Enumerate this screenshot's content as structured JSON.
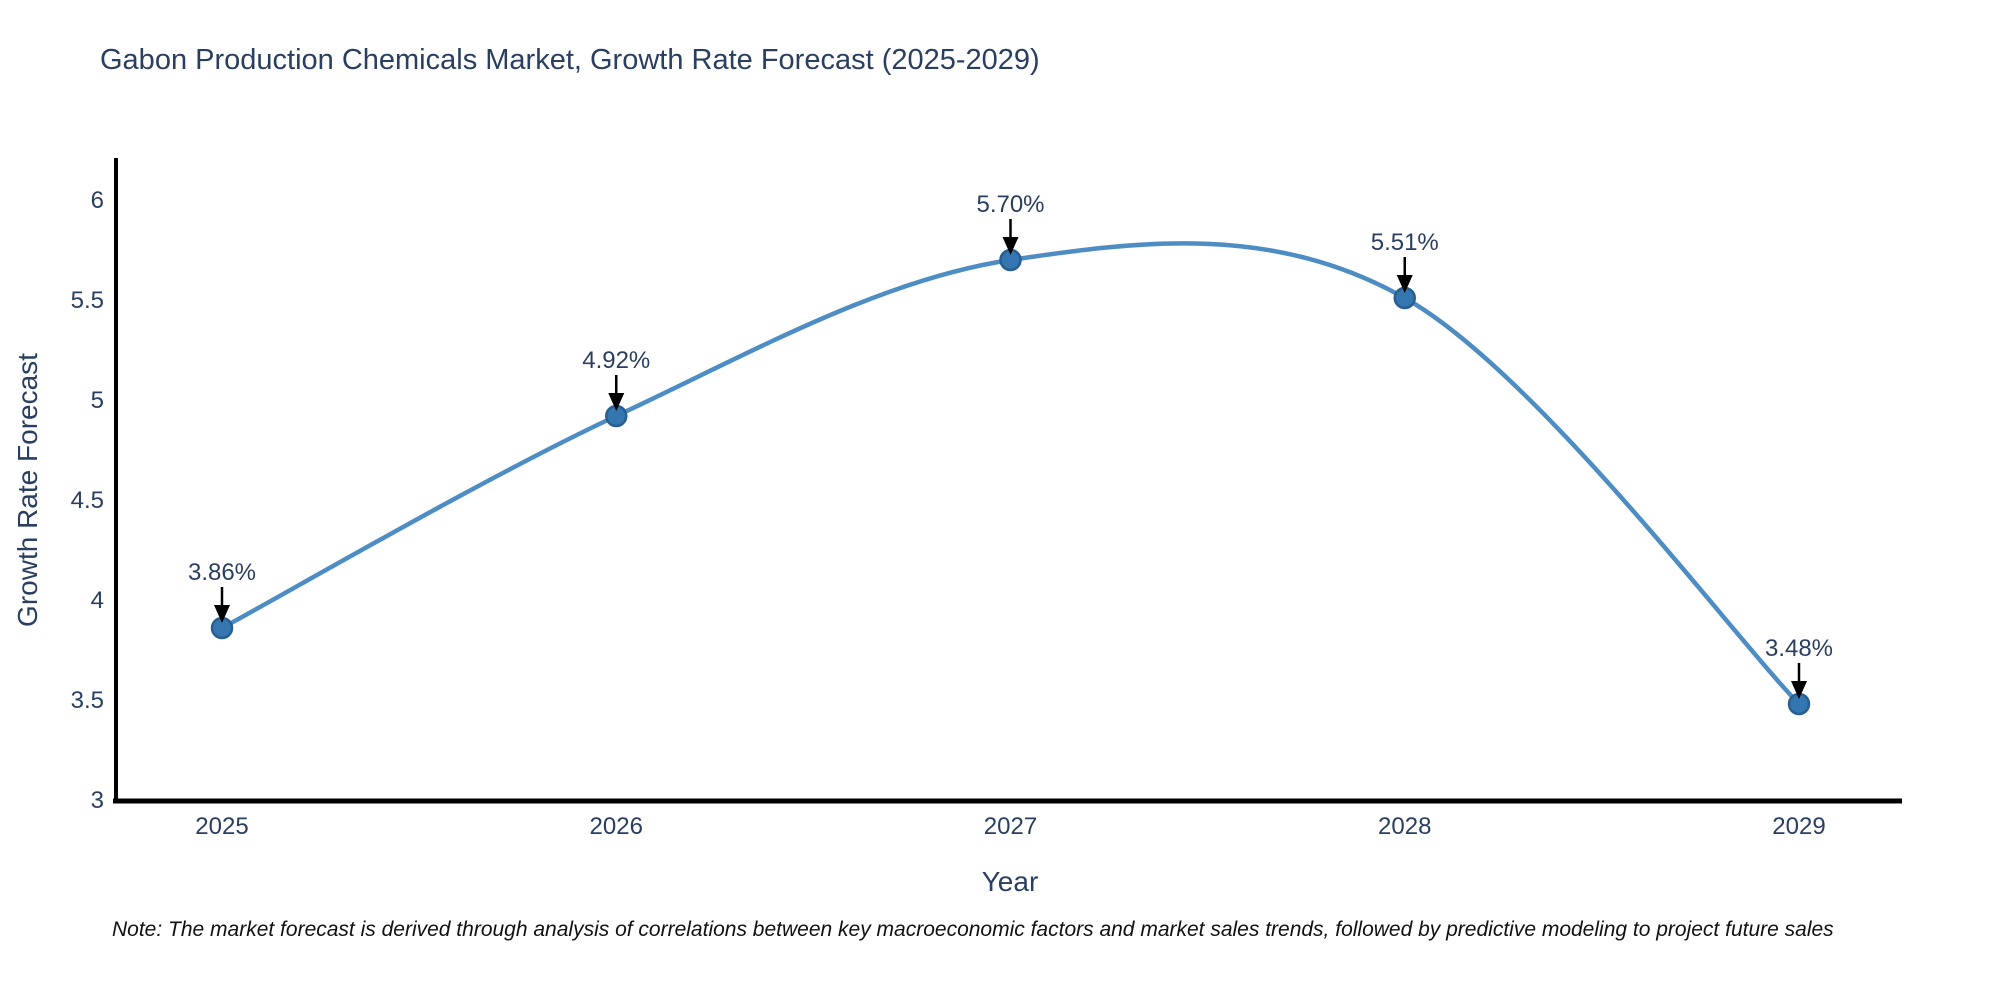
{
  "title": "Gabon Production Chemicals Market, Growth Rate Forecast (2025-2029)",
  "note": "Note: The market forecast is derived through analysis of correlations between key macroeconomic factors and market sales trends, followed by predictive modeling to project future sales",
  "chart_data": {
    "type": "line",
    "title": "Gabon Production Chemicals Market, Growth Rate Forecast (2025-2029)",
    "line_shape": "spline",
    "grid": false,
    "legend_position": "none",
    "x": [
      "2025",
      "2026",
      "2027",
      "2028",
      "2029"
    ],
    "values": [
      3.86,
      4.92,
      5.7,
      5.51,
      3.48
    ],
    "point_labels": [
      "3.86%",
      "4.92%",
      "5.70%",
      "5.51%",
      "3.48%"
    ],
    "xlabel": "Year",
    "ylabel": "Growth Rate Forecast",
    "yticks": [
      6,
      5.5,
      5,
      4.5,
      4,
      3.5,
      3
    ],
    "ylim": [
      3,
      6.2
    ],
    "colors": {
      "line": "#4d8dc4",
      "marker_fill": "#3476b0",
      "marker_edge": "#2a5e90",
      "axis": "#000000",
      "tick_text": "#2a3f5f",
      "annotation_text": "#2a3f5f",
      "arrow": "#000000"
    }
  }
}
